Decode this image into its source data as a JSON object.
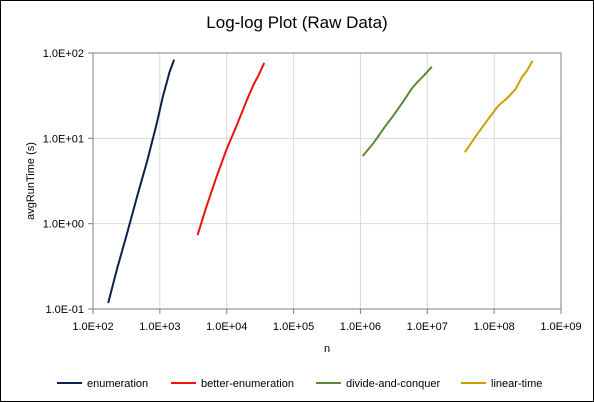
{
  "chart_data": {
    "type": "line",
    "title": "Log-log Plot (Raw Data)",
    "xlabel": "n",
    "ylabel": "avgRunTime  (s)",
    "x_scale": "log",
    "y_scale": "log",
    "xlim": [
      100,
      1000000000
    ],
    "ylim": [
      0.1,
      100
    ],
    "x_ticks": [
      100,
      1000,
      10000,
      100000,
      1000000,
      10000000,
      100000000,
      1000000000
    ],
    "x_tick_labels": [
      "1.0E+02",
      "1.0E+03",
      "1.0E+04",
      "1.0E+05",
      "1.0E+06",
      "1.0E+07",
      "1.0E+08",
      "1.0E+09"
    ],
    "y_ticks": [
      0.1,
      1,
      10,
      100
    ],
    "y_tick_labels": [
      "1.0E-01",
      "1.0E+00",
      "1.0E+01",
      "1.0E+02"
    ],
    "grid": true,
    "legend_position": "bottom",
    "series": [
      {
        "name": "enumeration",
        "color": "#0c1f4f",
        "x": [
          170,
          230,
          320,
          450,
          650,
          900,
          1100,
          1400,
          1620
        ],
        "y": [
          0.12,
          0.3,
          0.75,
          2.0,
          5.5,
          15.0,
          30.0,
          60.0,
          82.0
        ]
      },
      {
        "name": "better-enumeration",
        "color": "#ee1111",
        "x": [
          3700,
          5000,
          7000,
          10000,
          14000,
          20000,
          25000,
          30000,
          36000
        ],
        "y": [
          0.75,
          1.6,
          3.5,
          7.5,
          14.0,
          28.0,
          42.0,
          55.0,
          75.0
        ]
      },
      {
        "name": "divide-and-conquer",
        "color": "#5a8a3a",
        "x": [
          1100000,
          1600000,
          2300000,
          3200000,
          4500000,
          5800000,
          7000000,
          9000000,
          11500000
        ],
        "y": [
          6.3,
          9.0,
          13.5,
          19.0,
          28.0,
          38.0,
          45.0,
          55.0,
          68.0
        ]
      },
      {
        "name": "linear-time",
        "color": "#c8a000",
        "x": [
          37000000,
          55000000,
          80000000,
          115000000,
          160000000,
          210000000,
          260000000,
          310000000,
          370000000
        ],
        "y": [
          7.0,
          11.0,
          16.5,
          24.0,
          30.0,
          38.0,
          52.0,
          62.0,
          80.0
        ]
      }
    ]
  }
}
